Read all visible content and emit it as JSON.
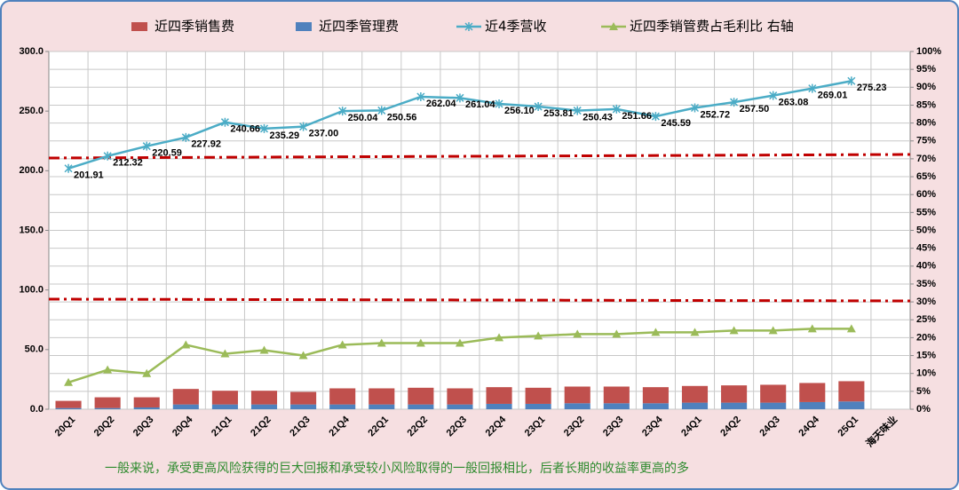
{
  "chart_data": {
    "type": "combo",
    "categories": [
      "20Q1",
      "20Q2",
      "20Q3",
      "20Q4",
      "21Q1",
      "21Q2",
      "21Q3",
      "21Q4",
      "22Q1",
      "22Q2",
      "22Q3",
      "22Q4",
      "23Q1",
      "23Q2",
      "23Q3",
      "23Q4",
      "24Q1",
      "24Q2",
      "24Q3",
      "24Q4",
      "25Q1",
      "海天味业"
    ],
    "series": [
      {
        "name": "近四季销售费",
        "type": "bar",
        "axis": "y",
        "color": "#c0504d",
        "values": [
          6,
          9,
          8.5,
          13,
          11.5,
          11.5,
          10.5,
          13.5,
          13.5,
          14,
          13.5,
          14,
          13.5,
          14,
          14,
          13.5,
          14,
          14.5,
          15,
          16,
          17,
          null
        ]
      },
      {
        "name": "近四季管理费",
        "type": "bar",
        "axis": "y",
        "color": "#4f81bd",
        "values": [
          1,
          1,
          1.5,
          4,
          4,
          4,
          4,
          4,
          4,
          4,
          4,
          4.5,
          4.5,
          5,
          5,
          5,
          5.5,
          5.5,
          5.5,
          6,
          6.5,
          null
        ]
      },
      {
        "name": "近4季营收",
        "type": "line",
        "axis": "y",
        "color": "#4bacc6",
        "marker": "star",
        "values": [
          201.91,
          212.32,
          220.59,
          227.92,
          240.66,
          235.29,
          237.0,
          250.04,
          250.56,
          262.04,
          261.04,
          256.1,
          253.81,
          250.43,
          251.66,
          245.59,
          252.72,
          257.5,
          263.08,
          269.01,
          275.23,
          null
        ],
        "value_labels": [
          "201.91",
          "212.32",
          "220.59",
          "227.92",
          "240.66",
          "235.29",
          "237.00",
          "250.04",
          "250.56",
          "262.04",
          "261.04",
          "256.10",
          "253.81",
          "250.43",
          "251.66",
          "245.59",
          "252.72",
          "257.50",
          "263.08",
          "269.01",
          "275.23",
          null
        ]
      },
      {
        "name": "近四季销管费占毛利比  右轴",
        "type": "line",
        "axis": "y2",
        "color": "#9bbb59",
        "marker": "triangle",
        "values": [
          7.5,
          11,
          10,
          18,
          15.5,
          16.5,
          15,
          18,
          18.5,
          18.5,
          18.5,
          20,
          20.5,
          21,
          21,
          21.5,
          21.5,
          22,
          22,
          22.5,
          22.5,
          null
        ]
      }
    ],
    "ylim": [
      0,
      300
    ],
    "yticks": [
      {
        "value": 0,
        "label": "0.0"
      },
      {
        "value": 50,
        "label": "50.0"
      },
      {
        "value": 100,
        "label": "100.0"
      },
      {
        "value": 150,
        "label": "150.0"
      },
      {
        "value": 200,
        "label": "200.0"
      },
      {
        "value": 250,
        "label": "250.0"
      },
      {
        "value": 300,
        "label": "300.0"
      }
    ],
    "y2lim": [
      0,
      100
    ],
    "y2ticks": [
      {
        "value": 0,
        "label": "0%"
      },
      {
        "value": 5,
        "label": "5%"
      },
      {
        "value": 10,
        "label": "10%"
      },
      {
        "value": 15,
        "label": "15%"
      },
      {
        "value": 20,
        "label": "20%"
      },
      {
        "value": 25,
        "label": "25%"
      },
      {
        "value": 30,
        "label": "30%"
      },
      {
        "value": 35,
        "label": "35%"
      },
      {
        "value": 40,
        "label": "40%"
      },
      {
        "value": 45,
        "label": "45%"
      },
      {
        "value": 50,
        "label": "50%"
      },
      {
        "value": 55,
        "label": "55%"
      },
      {
        "value": 60,
        "label": "60%"
      },
      {
        "value": 65,
        "label": "65%"
      },
      {
        "value": 70,
        "label": "70%"
      },
      {
        "value": 75,
        "label": "75%"
      },
      {
        "value": 80,
        "label": "80%"
      },
      {
        "value": 85,
        "label": "85%"
      },
      {
        "value": 90,
        "label": "90%"
      },
      {
        "value": 95,
        "label": "95%"
      },
      {
        "value": 100,
        "label": "100%"
      }
    ],
    "grid": true,
    "legend": "top",
    "annotation": "一般来说，承受更高风险获得的巨大回报和承受较小风险取得的一般回报相比，后者长期的收益率更高的多"
  }
}
